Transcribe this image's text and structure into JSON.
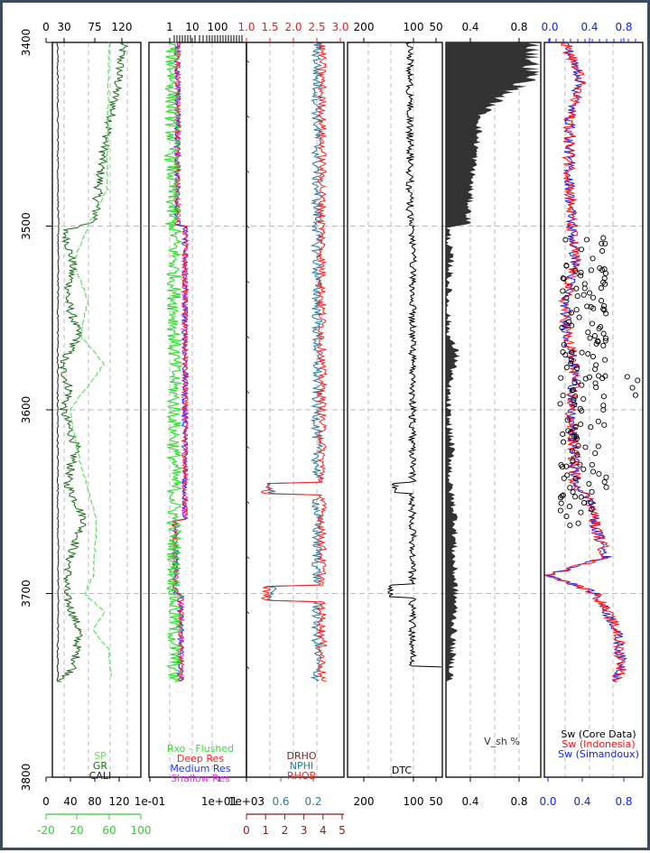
{
  "chart_data": {
    "type": "line",
    "title": "",
    "ylabel": "",
    "ylim": [
      3800,
      3400
    ],
    "depth_ticks": [
      "3400",
      "3500",
      "3600",
      "3700",
      "3800"
    ],
    "gridlines_depth": [
      3500,
      3600,
      3700
    ],
    "tracks": [
      {
        "id": "t1",
        "top_ticks": [
          "0",
          "30",
          "75",
          "120"
        ],
        "bottom_ticks_1": [
          "0",
          "40",
          "80",
          "120"
        ],
        "bottom_ticks_2": [
          "-20",
          "20",
          "60",
          "100"
        ],
        "legend": [
          "SP",
          "GR",
          "CALI"
        ],
        "colors": {
          "SP": "#66dd66",
          "GR": "#1f6b1f",
          "CALI": "#222222",
          "axis2": "#33cc33"
        },
        "series": {
          "GR": [
            [
              3400,
              120
            ],
            [
              3420,
              112
            ],
            [
              3440,
              100
            ],
            [
              3460,
              86
            ],
            [
              3480,
              78
            ],
            [
              3498,
              72
            ],
            [
              3502,
              20
            ],
            [
              3520,
              35
            ],
            [
              3540,
              25
            ],
            [
              3560,
              45
            ],
            [
              3575,
              15
            ],
            [
              3590,
              30
            ],
            [
              3600,
              18
            ],
            [
              3620,
              40
            ],
            [
              3640,
              25
            ],
            [
              3660,
              55
            ],
            [
              3680,
              30
            ],
            [
              3700,
              22
            ],
            [
              3720,
              45
            ],
            [
              3740,
              38
            ],
            [
              3748,
              15
            ]
          ],
          "SP": [
            [
              3400,
              96
            ],
            [
              3440,
              94
            ],
            [
              3480,
              93
            ],
            [
              3500,
              60
            ],
            [
              3520,
              35
            ],
            [
              3540,
              60
            ],
            [
              3560,
              48
            ],
            [
              3575,
              88
            ],
            [
              3600,
              30
            ],
            [
              3620,
              40
            ],
            [
              3640,
              58
            ],
            [
              3660,
              75
            ],
            [
              3690,
              70
            ],
            [
              3700,
              55
            ],
            [
              3710,
              88
            ],
            [
              3720,
              70
            ],
            [
              3730,
              95
            ],
            [
              3745,
              100
            ]
          ],
          "CALI": [
            [
              3400,
              9
            ],
            [
              3500,
              10
            ],
            [
              3600,
              9
            ],
            [
              3700,
              10
            ],
            [
              3748,
              9
            ]
          ]
        }
      },
      {
        "id": "t2",
        "top_ticks": [
          "1",
          "10",
          "100"
        ],
        "bottom_ticks": [
          "1e-01",
          "1e+01",
          "1e+03"
        ],
        "legend": [
          "Rxo - Flushed",
          "Deep Res",
          "Medium Res",
          "Shallow Res"
        ],
        "colors": {
          "Rxo - Flushed": "#33dd33",
          "Deep Res": "#ff2222",
          "Medium Res": "#2233ff",
          "Shallow Res": "#ee33ee"
        }
      },
      {
        "id": "t3",
        "top_ticks": [
          "1.0",
          "1.5",
          "2.0",
          "2.5",
          "3.0"
        ],
        "bottom_ticks_1": [
          "0.6",
          "0.2"
        ],
        "bottom_ticks_2": [
          "0",
          "1",
          "2",
          "3",
          "4",
          "5"
        ],
        "legend": [
          "DRHO",
          "NPHI",
          "RHOB"
        ],
        "colors": {
          "DRHO": "#8b1a1a",
          "NPHI": "#2a7a9a",
          "RHOB": "#ff2222"
        }
      },
      {
        "id": "t4",
        "top_ticks": [
          "200",
          "100",
          "50"
        ],
        "bottom_ticks": [
          "200",
          "100",
          "50"
        ],
        "legend": [
          "DTC"
        ],
        "colors": {
          "DTC": "#000000"
        }
      },
      {
        "id": "t5",
        "top_ticks": [
          "0.4",
          "0.8"
        ],
        "bottom_ticks": [
          "0.4",
          "0.8"
        ],
        "legend": [
          "V_sh %"
        ],
        "colors": {
          "V_sh %": "#333333"
        },
        "series": {
          "Vsh": [
            [
              3400,
              0.9
            ],
            [
              3420,
              0.85
            ],
            [
              3430,
              0.55
            ],
            [
              3440,
              0.35
            ],
            [
              3460,
              0.3
            ],
            [
              3480,
              0.25
            ],
            [
              3499,
              0.22
            ],
            [
              3501,
              0.02
            ],
            [
              3520,
              0.05
            ],
            [
              3540,
              0.02
            ],
            [
              3560,
              0.03
            ],
            [
              3570,
              0.12
            ],
            [
              3585,
              0.03
            ],
            [
              3600,
              0.02
            ],
            [
              3620,
              0.06
            ],
            [
              3640,
              0.04
            ],
            [
              3660,
              0.1
            ],
            [
              3680,
              0.08
            ],
            [
              3700,
              0.1
            ],
            [
              3720,
              0.08
            ],
            [
              3740,
              0.06
            ],
            [
              3748,
              0.05
            ]
          ]
        }
      },
      {
        "id": "t6",
        "top_ticks": [
          "0.0",
          "0.4",
          "0.8"
        ],
        "bottom_ticks": [
          "0.0",
          "0.4",
          "0.8"
        ],
        "legend": [
          "Sw (Core Data)",
          "Sw (Indonesia)",
          "Sw (Simandoux)"
        ],
        "colors": {
          "Sw (Core Data)": "#000000",
          "Sw (Indonesia)": "#ff1111",
          "Sw (Simandoux)": "#1122ee",
          "axis": "#1122ee"
        },
        "series": {
          "Sw": [
            [
              3400,
              0.2
            ],
            [
              3420,
              0.35
            ],
            [
              3440,
              0.25
            ],
            [
              3460,
              0.24
            ],
            [
              3480,
              0.25
            ],
            [
              3500,
              0.26
            ],
            [
              3520,
              0.3
            ],
            [
              3540,
              0.2
            ],
            [
              3560,
              0.22
            ],
            [
              3580,
              0.3
            ],
            [
              3600,
              0.25
            ],
            [
              3620,
              0.28
            ],
            [
              3640,
              0.3
            ],
            [
              3650,
              0.45
            ],
            [
              3665,
              0.5
            ],
            [
              3680,
              0.6
            ],
            [
              3690,
              0.05
            ],
            [
              3700,
              0.5
            ],
            [
              3720,
              0.7
            ],
            [
              3740,
              0.75
            ],
            [
              3748,
              0.7
            ]
          ]
        }
      }
    ]
  }
}
